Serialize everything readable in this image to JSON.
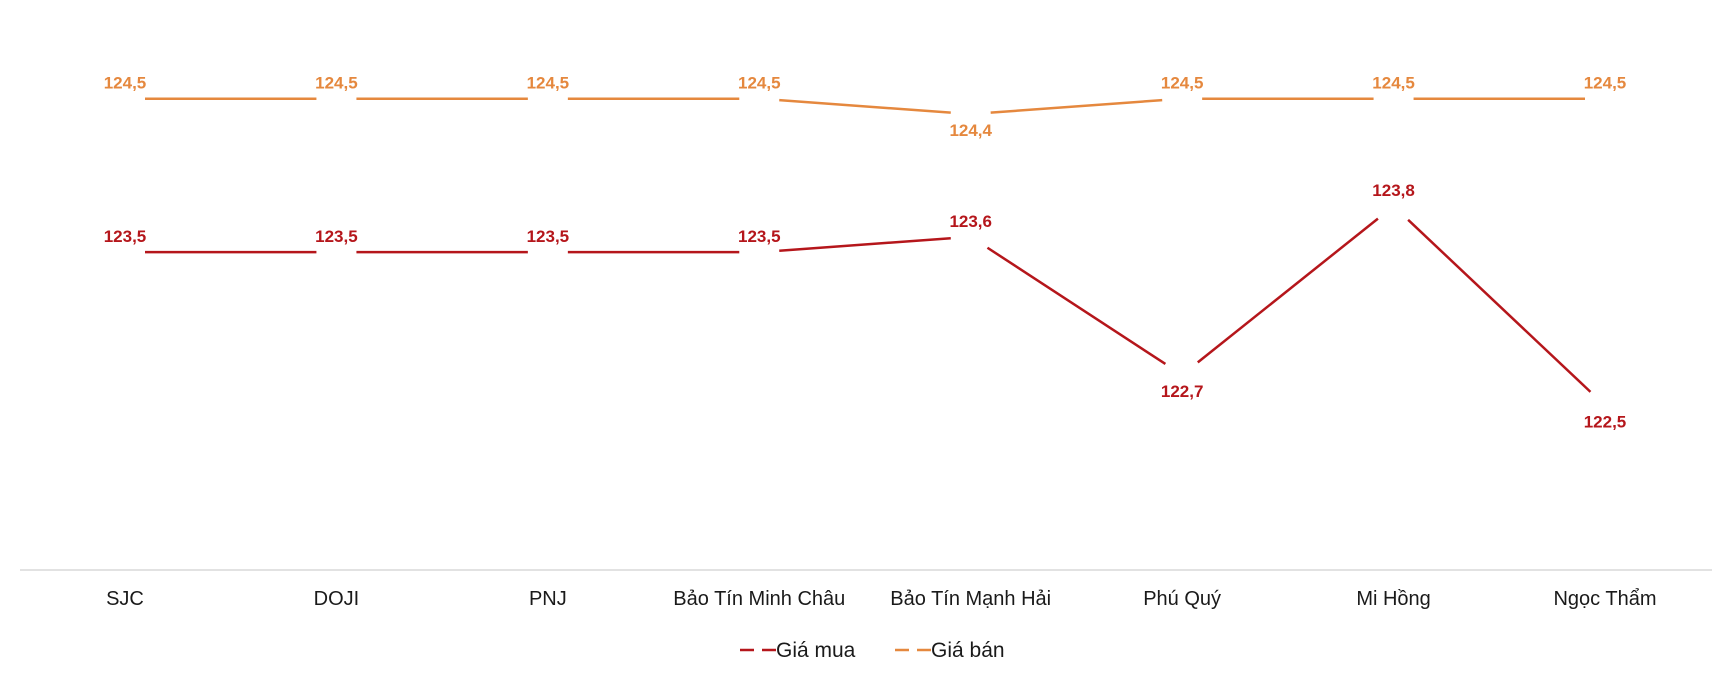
{
  "chart_data": {
    "type": "line",
    "categories": [
      "SJC",
      "DOJI",
      "PNJ",
      "Bảo Tín Minh Châu",
      "Bảo Tín Mạnh Hải",
      "Phú Quý",
      "Mi Hồng",
      "Ngọc Thẩm"
    ],
    "series": [
      {
        "name": "Giá mua",
        "color": "#b5161b",
        "values": [
          123.5,
          123.5,
          123.5,
          123.5,
          123.6,
          122.7,
          123.8,
          122.5
        ],
        "labels": [
          "123,5",
          "123,5",
          "123,5",
          "123,5",
          "123,6",
          "122,7",
          "123,8",
          "122,5"
        ]
      },
      {
        "name": "Giá bán",
        "color": "#e5883e",
        "values": [
          124.5,
          124.5,
          124.5,
          124.5,
          124.4,
          124.5,
          124.5,
          124.5
        ],
        "labels": [
          "124,5",
          "124,5",
          "124,5",
          "124,5",
          "124,4",
          "124,5",
          "124,5",
          "124,5"
        ]
      }
    ],
    "ylim": [
      121.5,
      125.0
    ],
    "grid": false,
    "legend_position": "bottom",
    "axis_line_color": "#d9d9d9"
  }
}
